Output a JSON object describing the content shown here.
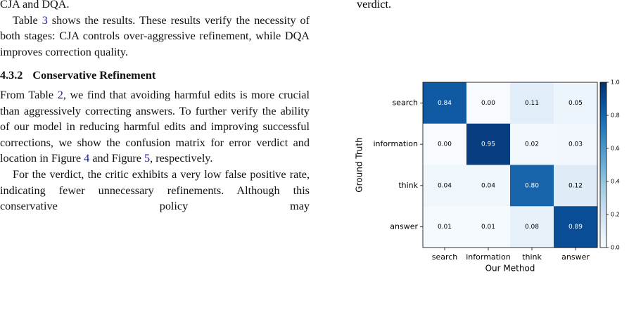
{
  "left_column": {
    "para_1": [
      "CJA and DQA."
    ],
    "para_2": [
      "Table ",
      {
        "ref": "3"
      },
      " shows the results. These results verify the necessity of both stages: CJA controls over-aggressive refinement, while DQA improves correction quality."
    ],
    "heading": {
      "number": "4.3.2",
      "title": "Conservative Refinement"
    },
    "para_3": [
      "From Table ",
      {
        "ref": "2"
      },
      ", we find that avoiding harmful edits is more crucial than aggressively correcting answers. To further verify the ability of our model in reducing harmful edits and improving successful corrections, we show the confusion matrix for error verdict and location in Figure ",
      {
        "ref": "4"
      },
      " and Figure ",
      {
        "ref": "5"
      },
      ", respectively."
    ],
    "para_4": [
      "For the verdict, the critic exhibits a very low false positive rate, indicating fewer unnecessary refinements. Although this conservative policy may"
    ]
  },
  "right_column": {
    "text": "verdict."
  },
  "chart_data": {
    "type": "heatmap",
    "x_categories": [
      "search",
      "information",
      "think",
      "answer"
    ],
    "y_categories": [
      "search",
      "information",
      "think",
      "answer"
    ],
    "xlabel": "Our Method",
    "ylabel": "Ground Truth",
    "values": [
      [
        0.84,
        0,
        0.11,
        0.05
      ],
      [
        0,
        0.95,
        0.02,
        0.03
      ],
      [
        0.04,
        0.04,
        0.8,
        0.12
      ],
      [
        0.01,
        0.01,
        0.08,
        0.89
      ]
    ],
    "value_labels": [
      [
        "0.84",
        "0.00",
        "0.11",
        "0.05"
      ],
      [
        "0.00",
        "0.95",
        "0.02",
        "0.03"
      ],
      [
        "0.04",
        "0.04",
        "0.80",
        "0.12"
      ],
      [
        "0.01",
        "0.01",
        "0.08",
        "0.89"
      ]
    ],
    "colormap": "Blues",
    "clim": [
      0,
      1
    ],
    "cticks": [
      {
        "value": 0,
        "label": "0.0"
      },
      0.2,
      0.4,
      0.6,
      0.8,
      {
        "value": 1,
        "label": "1.0"
      }
    ]
  }
}
